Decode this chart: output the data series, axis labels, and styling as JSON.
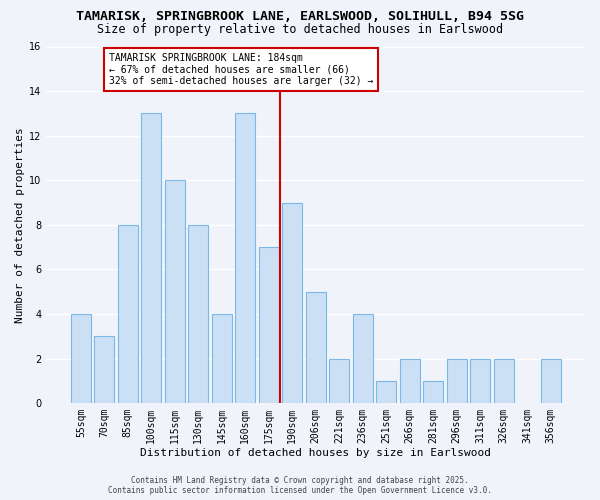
{
  "title": "TAMARISK, SPRINGBROOK LANE, EARLSWOOD, SOLIHULL, B94 5SG",
  "subtitle": "Size of property relative to detached houses in Earlswood",
  "xlabel": "Distribution of detached houses by size in Earlswood",
  "ylabel": "Number of detached properties",
  "categories": [
    "55sqm",
    "70sqm",
    "85sqm",
    "100sqm",
    "115sqm",
    "130sqm",
    "145sqm",
    "160sqm",
    "175sqm",
    "190sqm",
    "206sqm",
    "221sqm",
    "236sqm",
    "251sqm",
    "266sqm",
    "281sqm",
    "296sqm",
    "311sqm",
    "326sqm",
    "341sqm",
    "356sqm"
  ],
  "values": [
    4,
    3,
    8,
    13,
    10,
    8,
    4,
    13,
    7,
    9,
    5,
    2,
    4,
    1,
    2,
    1,
    2,
    2,
    2,
    0,
    2
  ],
  "bar_color": "#cce0f5",
  "bar_edge_color": "#7ab8e8",
  "vline_x_idx": 8.5,
  "vline_color": "#cc0000",
  "ylim": [
    0,
    16
  ],
  "yticks": [
    0,
    2,
    4,
    6,
    8,
    10,
    12,
    14,
    16
  ],
  "annotation_title": "TAMARISK SPRINGBROOK LANE: 184sqm",
  "annotation_line1": "← 67% of detached houses are smaller (66)",
  "annotation_line2": "32% of semi-detached houses are larger (32) →",
  "annotation_box_color": "#ffffff",
  "annotation_box_edge": "#cc0000",
  "footer_line1": "Contains HM Land Registry data © Crown copyright and database right 2025.",
  "footer_line2": "Contains public sector information licensed under the Open Government Licence v3.0.",
  "background_color": "#f0f4fa",
  "grid_color": "#ffffff",
  "title_fontsize": 9.5,
  "subtitle_fontsize": 8.5,
  "axis_label_fontsize": 8,
  "tick_fontsize": 7,
  "annotation_fontsize": 7,
  "footer_fontsize": 5.5
}
